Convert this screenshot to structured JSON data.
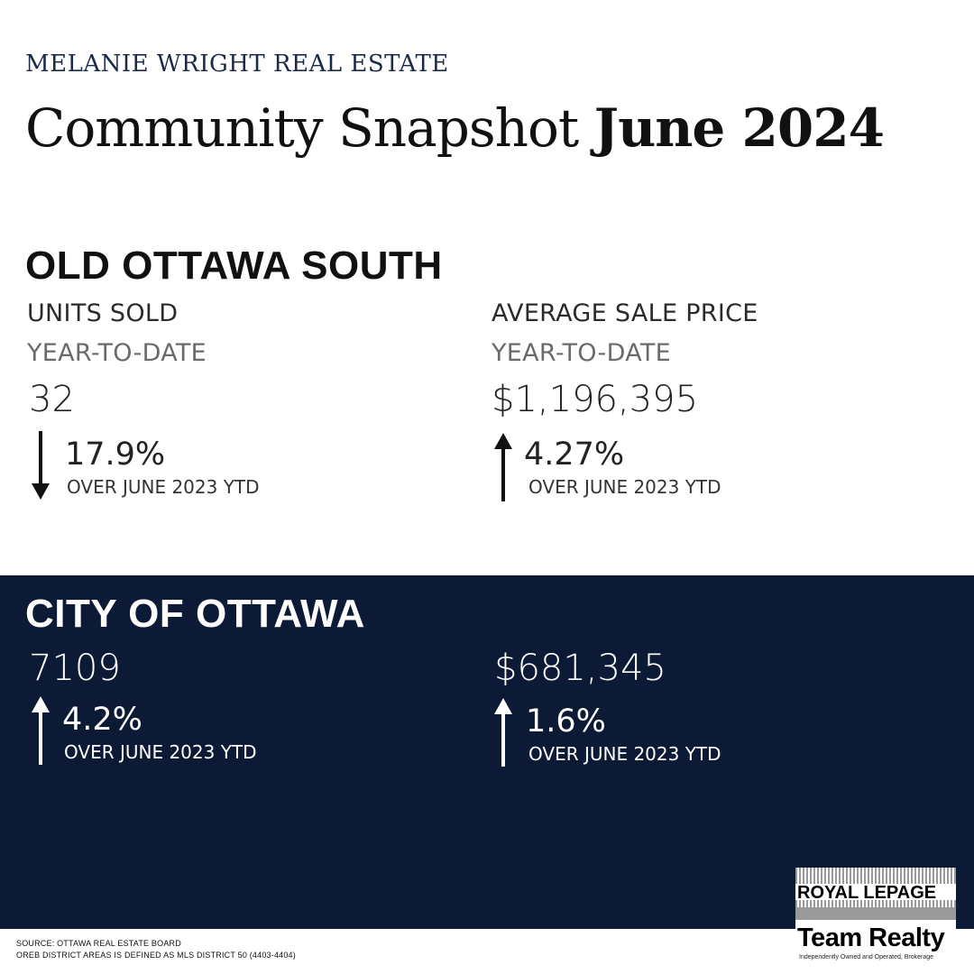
{
  "header": {
    "brand": "MELANIE WRIGHT REAL ESTATE",
    "title_regular": "Community Snapshot ",
    "title_bold": "June 2024"
  },
  "community": {
    "name": "OLD OTTAWA SOUTH",
    "units": {
      "label": "UNITS SOLD",
      "period": "YEAR-TO-DATE",
      "value": "32",
      "change": "17.9%",
      "direction": "down",
      "comparison": "OVER JUNE 2023 YTD"
    },
    "price": {
      "label": "AVERAGE SALE PRICE",
      "period": "YEAR-TO-DATE",
      "value": "$1,196,395",
      "change": "4.27%",
      "direction": "up",
      "comparison": "OVER JUNE 2023 YTD"
    }
  },
  "city": {
    "name": "CITY OF OTTAWA",
    "units": {
      "value": "7109",
      "change": "4.2%",
      "direction": "up",
      "comparison": "OVER JUNE 2023 YTD"
    },
    "price": {
      "value": "$681,345",
      "change": "1.6%",
      "direction": "up",
      "comparison": "OVER JUNE 2023 YTD"
    }
  },
  "footer": {
    "source": "SOURCE: OTTAWA REAL ESTATE BOARD",
    "note": "OREB DISTRICT AREAS IS DEFINED AS MLS DISTRICT 50 (4403-4404)"
  },
  "logo": {
    "line1": "ROYAL LEPAGE",
    "line2": "Team Realty",
    "tagline": "Independently Owned and Operated, Brokerage"
  },
  "colors": {
    "navy": "#0d1a36",
    "brand_text": "#1b2a4a"
  }
}
